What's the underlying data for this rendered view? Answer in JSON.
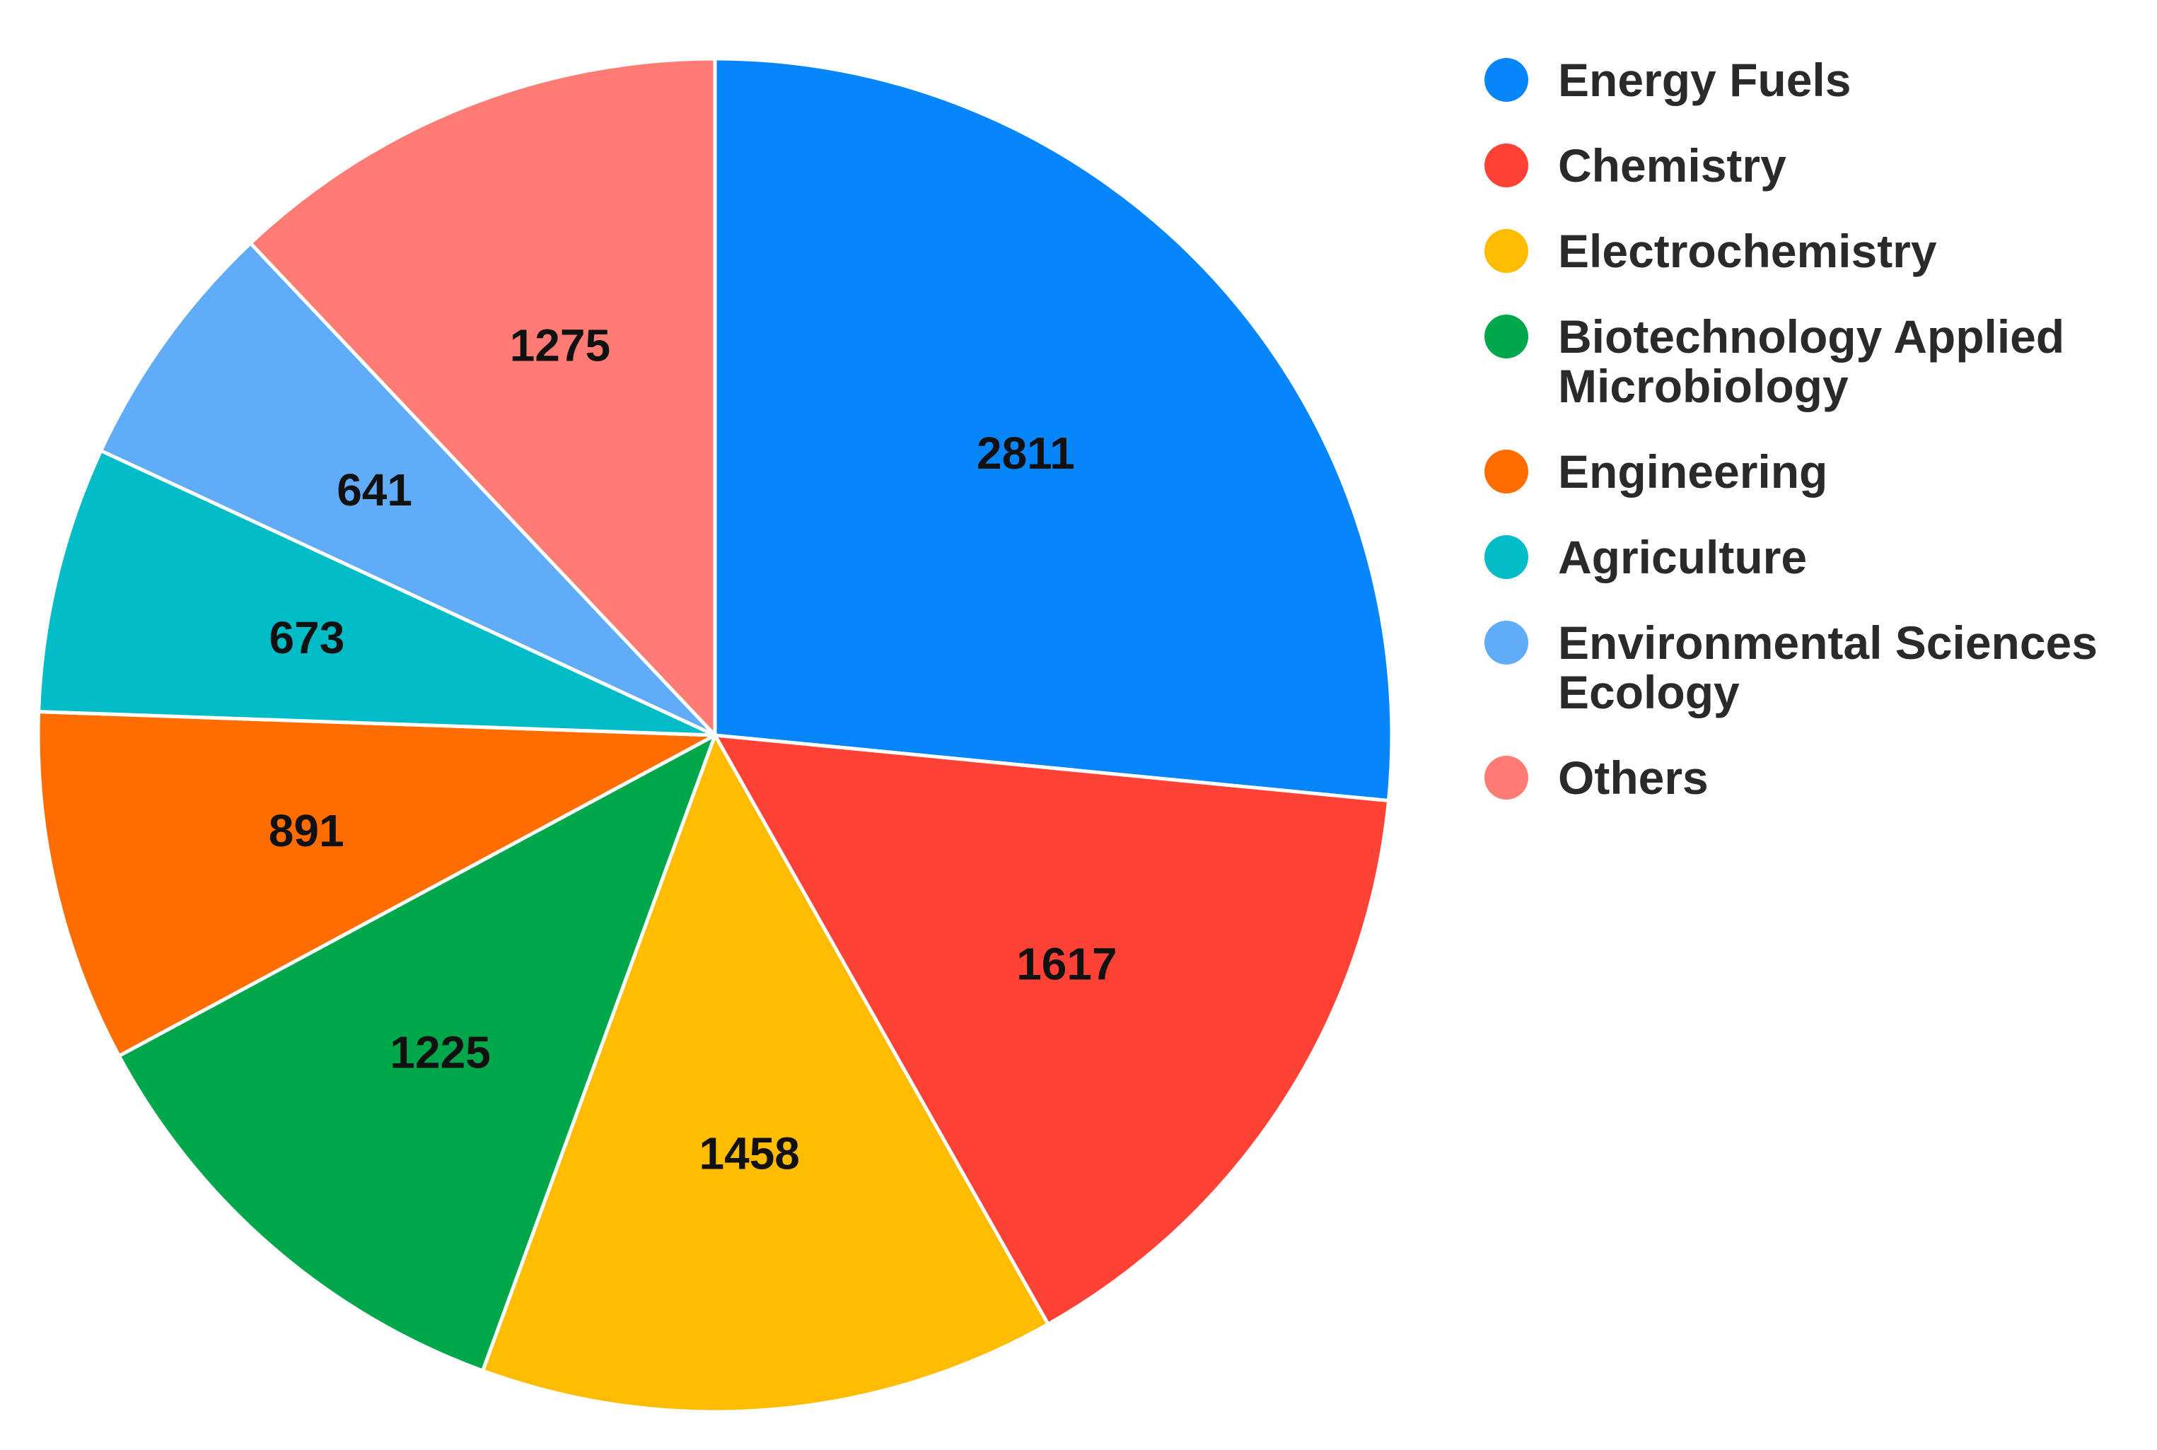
{
  "chart_data": {
    "type": "pie",
    "title": "",
    "start_angle_deg": 0,
    "direction": "clockwise",
    "legend_position": "right",
    "slices": [
      {
        "label": [
          "Energy Fuels"
        ],
        "value": 2811,
        "value_label": "2811",
        "color": "#0686FA"
      },
      {
        "label": [
          "Chemistry"
        ],
        "value": 1617,
        "value_label": "1617",
        "color": "#FF4136"
      },
      {
        "label": [
          "Electrochemistry"
        ],
        "value": 1458,
        "value_label": "1458",
        "color": "#FDBC00"
      },
      {
        "label": [
          "Biotechnology Applied",
          "Microbiology"
        ],
        "value": 1225,
        "value_label": "1225",
        "color": "#00A84B"
      },
      {
        "label": [
          "Engineering"
        ],
        "value": 891,
        "value_label": "891",
        "color": "#FF6D00"
      },
      {
        "label": [
          "Agriculture"
        ],
        "value": 673,
        "value_label": "673",
        "color": "#00BCC7"
      },
      {
        "label": [
          "Environmental Sciences",
          "Ecology"
        ],
        "value": 641,
        "value_label": "641",
        "color": "#60ACF8"
      },
      {
        "label": [
          "Others"
        ],
        "value": 1275,
        "value_label": "1275",
        "color": "#FF7B73"
      }
    ]
  }
}
